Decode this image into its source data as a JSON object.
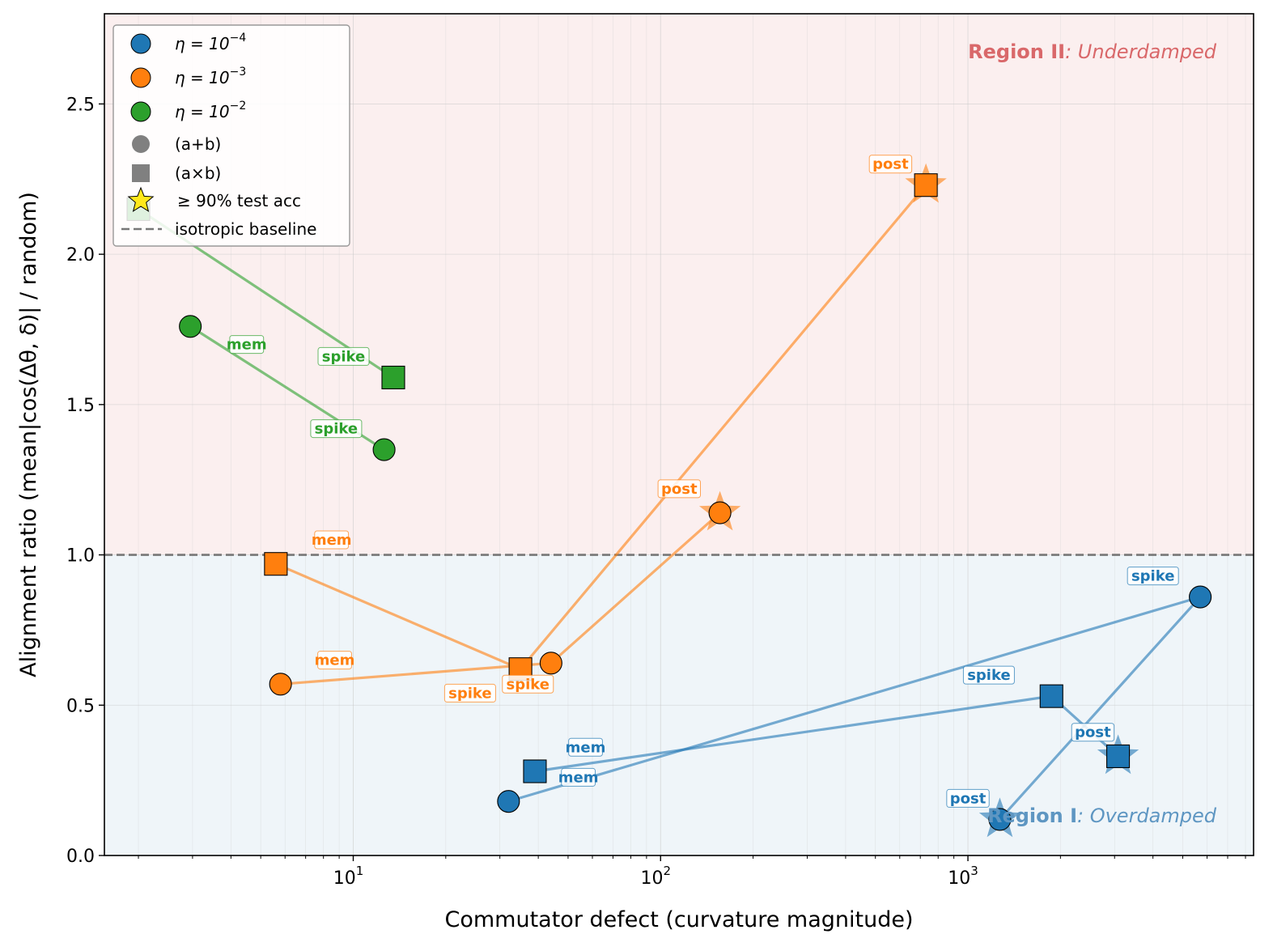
{
  "chart_data": {
    "type": "scatter",
    "xlabel": "Commutator defect (curvature magnitude)",
    "ylabel": "Alignment ratio  (mean|cos(Δθ, δ)| / random)",
    "xscale": "log",
    "xlim": [
      1.55,
      8500
    ],
    "ylim": [
      0,
      2.8
    ],
    "y_ticks": [
      "0.0",
      "0.5",
      "1.0",
      "1.5",
      "2.0",
      "2.5"
    ],
    "x_ticks": [
      {
        "value": 10,
        "base": "10",
        "exp": "1"
      },
      {
        "value": 100,
        "base": "10",
        "exp": "2"
      },
      {
        "value": 1000,
        "base": "10",
        "exp": "3"
      }
    ],
    "baseline": {
      "y": 1.0,
      "label": "isotropic baseline"
    },
    "regions": [
      {
        "id": "region-ii",
        "bold": "Region II",
        "italic": ": Underdamped",
        "y_range": [
          1.0,
          2.8
        ],
        "color": "#fbefef",
        "text_color": "#d9686a"
      },
      {
        "id": "region-i",
        "bold": "Region I",
        "italic": ": Overdamped",
        "y_range": [
          0.0,
          1.0
        ],
        "color": "#eff5f9",
        "text_color": "#5e96c2"
      }
    ],
    "legend": {
      "eta": [
        {
          "label": "η = 10",
          "exp": "−4",
          "color": "#1f77b4"
        },
        {
          "label": "η = 10",
          "exp": "−3",
          "color": "#ff7f0e"
        },
        {
          "label": "η = 10",
          "exp": "−2",
          "color": "#2ca02c"
        }
      ],
      "circle_label": "(a+b)",
      "square_label": "(a×b)",
      "star_label": "≥ 90% test acc",
      "baseline_label": "isotropic baseline"
    },
    "series": [
      {
        "name": "η=1e-4 (a+b)",
        "color": "#1f77b4",
        "marker": "circle",
        "points": [
          {
            "phase": "mem",
            "x": 32,
            "y": 0.18
          },
          {
            "phase": "spike",
            "x": 5700,
            "y": 0.86
          },
          {
            "phase": "post",
            "x": 1270,
            "y": 0.12,
            "star": true
          }
        ]
      },
      {
        "name": "η=1e-4 (a×b)",
        "color": "#1f77b4",
        "marker": "square",
        "points": [
          {
            "phase": "mem",
            "x": 39,
            "y": 0.28
          },
          {
            "phase": "spike",
            "x": 1870,
            "y": 0.53
          },
          {
            "phase": "post",
            "x": 3080,
            "y": 0.33,
            "star": true
          }
        ]
      },
      {
        "name": "η=1e-3 (a+b)",
        "color": "#ff7f0e",
        "marker": "circle",
        "points": [
          {
            "phase": "mem",
            "x": 5.8,
            "y": 0.57
          },
          {
            "phase": "spike",
            "x": 44,
            "y": 0.64
          },
          {
            "phase": "post",
            "x": 156,
            "y": 1.14,
            "star": true
          }
        ]
      },
      {
        "name": "η=1e-3 (a×b)",
        "color": "#ff7f0e",
        "marker": "square",
        "points": [
          {
            "phase": "mem",
            "x": 5.6,
            "y": 0.97
          },
          {
            "phase": "spike",
            "x": 35,
            "y": 0.62
          },
          {
            "phase": "post",
            "x": 730,
            "y": 2.23,
            "star": true
          }
        ]
      },
      {
        "name": "η=1e-2 (a+b)",
        "color": "#2ca02c",
        "marker": "circle",
        "points": [
          {
            "phase": "mem",
            "x": 2.95,
            "y": 1.76
          },
          {
            "phase": "spike",
            "x": 12.6,
            "y": 1.35
          }
        ]
      },
      {
        "name": "η=1e-2 (a×b)",
        "color": "#2ca02c",
        "marker": "square",
        "points": [
          {
            "phase": "mem",
            "x": 2.0,
            "y": 2.15
          },
          {
            "phase": "spike",
            "x": 13.5,
            "y": 1.59
          }
        ]
      }
    ],
    "annotations": [
      {
        "text": "mem",
        "color": "#2ca02c",
        "x": 4.5,
        "y": 1.7
      },
      {
        "text": "spike",
        "color": "#2ca02c",
        "x": 9.3,
        "y": 1.66
      },
      {
        "text": "spike",
        "color": "#2ca02c",
        "x": 8.8,
        "y": 1.42
      },
      {
        "text": "mem",
        "color": "#ff7f0e",
        "x": 8.5,
        "y": 1.05
      },
      {
        "text": "mem",
        "color": "#ff7f0e",
        "x": 8.7,
        "y": 0.65
      },
      {
        "text": "spike",
        "color": "#ff7f0e",
        "x": 37,
        "y": 0.57
      },
      {
        "text": "spike",
        "color": "#ff7f0e",
        "x": 24,
        "y": 0.54
      },
      {
        "text": "post",
        "color": "#ff7f0e",
        "x": 115,
        "y": 1.22
      },
      {
        "text": "post",
        "color": "#ff7f0e",
        "x": 560,
        "y": 2.3
      },
      {
        "text": "mem",
        "color": "#1f77b4",
        "x": 57,
        "y": 0.36
      },
      {
        "text": "mem",
        "color": "#1f77b4",
        "x": 54,
        "y": 0.26
      },
      {
        "text": "spike",
        "color": "#1f77b4",
        "x": 1170,
        "y": 0.6
      },
      {
        "text": "spike",
        "color": "#1f77b4",
        "x": 4000,
        "y": 0.93
      },
      {
        "text": "post",
        "color": "#1f77b4",
        "x": 2550,
        "y": 0.41
      },
      {
        "text": "post",
        "color": "#1f77b4",
        "x": 1000,
        "y": 0.19
      }
    ]
  }
}
